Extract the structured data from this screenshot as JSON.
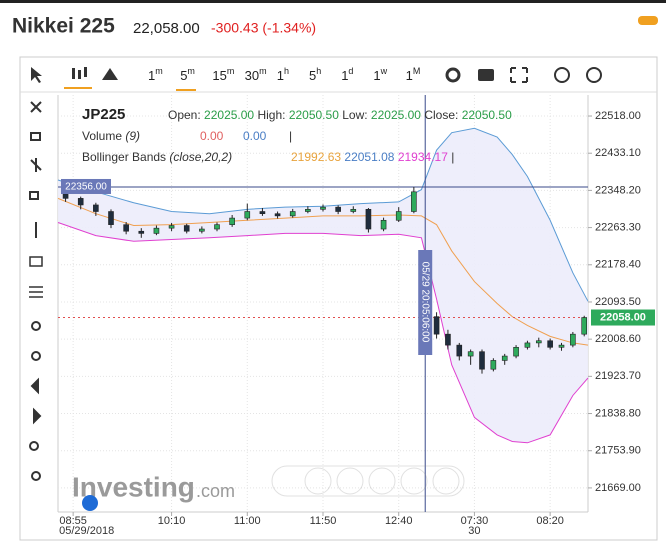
{
  "header": {
    "title": "Nikkei 225",
    "price": "22,058.00",
    "change": "-300.43 (-1.34%)"
  },
  "toolbar": {
    "intervals": [
      [
        "1",
        "m"
      ],
      [
        "5",
        "m"
      ],
      [
        "15",
        "m"
      ],
      [
        "30",
        "m"
      ],
      [
        "1",
        "h"
      ],
      [
        "5",
        "h"
      ],
      [
        "1",
        "d"
      ],
      [
        "1",
        "w"
      ],
      [
        "1",
        "M"
      ]
    ]
  },
  "legend": {
    "symbol": "JP225",
    "open_label": "Open:",
    "open": "22025.00",
    "high_label": "High:",
    "high": "22050.50",
    "low_label": "Low:",
    "low": "22025.00",
    "close_label": "Close:",
    "close": "22050.50",
    "volume_label": "Volume",
    "volume_param": "(9)",
    "volume_a": "0.00",
    "volume_b": "0.00",
    "sep": "|",
    "bb_label": "Bollinger Bands",
    "bb_param": "(close,20,2)",
    "bb_a": "21992.63",
    "bb_b": "22051.08",
    "bb_c": "21934.17"
  },
  "logo": {
    "text": "Investing",
    "suffix": ".com"
  },
  "chart_data": {
    "type": "candlestick",
    "xlim": [
      0,
      70
    ],
    "ylim": [
      21614,
      22566
    ],
    "grid": true,
    "up_color": "#2eaa5c",
    "down_color": "#1f2d3d",
    "yticks": [
      {
        "value": 22518,
        "label": "22518.00"
      },
      {
        "value": 22433.1,
        "label": "22433.10"
      },
      {
        "value": 22348.2,
        "label": "22348.20"
      },
      {
        "value": 22263.3,
        "label": "22263.30"
      },
      {
        "value": 22178.4,
        "label": "22178.40"
      },
      {
        "value": 22093.5,
        "label": "22093.50"
      },
      {
        "value": 22008.6,
        "label": "22008.60"
      },
      {
        "value": 21923.7,
        "label": "21923.70"
      },
      {
        "value": 21838.8,
        "label": "21838.80"
      },
      {
        "value": 21753.9,
        "label": "21753.90"
      },
      {
        "value": 21669,
        "label": "21669.00"
      }
    ],
    "xticks": [
      {
        "value": 2,
        "label": "08:55"
      },
      {
        "value": 15,
        "label": "10:10"
      },
      {
        "value": 25,
        "label": "11:00"
      },
      {
        "value": 35,
        "label": "11:50"
      },
      {
        "value": 45,
        "label": "12:40"
      },
      {
        "value": 55,
        "label": "07:30"
      },
      {
        "value": 65,
        "label": "08:20"
      }
    ],
    "date_labels": [
      {
        "value": 2,
        "label": "05/29/2018"
      },
      {
        "value": 55,
        "label": "30"
      }
    ],
    "x": [
      1,
      3,
      5,
      7,
      9,
      11,
      13,
      15,
      17,
      19,
      21,
      23,
      25,
      27,
      29,
      31,
      33,
      35,
      37,
      39,
      41,
      43,
      45,
      47,
      50,
      51.5,
      53,
      54.5,
      56,
      57.5,
      59,
      60.5,
      62,
      63.5,
      65,
      66.5,
      68,
      69.5
    ],
    "ohlc": [
      [
        22340,
        22345,
        22322,
        22330
      ],
      [
        22330,
        22334,
        22305,
        22315
      ],
      [
        22315,
        22320,
        22290,
        22300
      ],
      [
        22300,
        22305,
        22262,
        22270
      ],
      [
        22270,
        22276,
        22248,
        22255
      ],
      [
        22255,
        22262,
        22240,
        22250
      ],
      [
        22250,
        22268,
        22246,
        22262
      ],
      [
        22262,
        22274,
        22255,
        22268
      ],
      [
        22268,
        22272,
        22250,
        22255
      ],
      [
        22255,
        22266,
        22250,
        22260
      ],
      [
        22260,
        22275,
        22255,
        22270
      ],
      [
        22270,
        22292,
        22265,
        22285
      ],
      [
        22285,
        22318,
        22280,
        22300
      ],
      [
        22300,
        22308,
        22290,
        22295
      ],
      [
        22295,
        22300,
        22284,
        22290
      ],
      [
        22290,
        22306,
        22286,
        22300
      ],
      [
        22300,
        22312,
        22296,
        22305
      ],
      [
        22305,
        22316,
        22300,
        22310
      ],
      [
        22310,
        22314,
        22294,
        22300
      ],
      [
        22300,
        22312,
        22296,
        22305
      ],
      [
        22305,
        22308,
        22252,
        22260
      ],
      [
        22260,
        22286,
        22255,
        22280
      ],
      [
        22280,
        22310,
        22276,
        22300
      ],
      [
        22300,
        22356,
        22296,
        22345
      ],
      [
        22060,
        22070,
        22010,
        22020
      ],
      [
        22020,
        22030,
        21985,
        21995
      ],
      [
        21995,
        22000,
        21960,
        21970
      ],
      [
        21970,
        21985,
        21950,
        21980
      ],
      [
        21980,
        21985,
        21930,
        21940
      ],
      [
        21940,
        21965,
        21935,
        21960
      ],
      [
        21960,
        21975,
        21950,
        21970
      ],
      [
        21970,
        21995,
        21965,
        21990
      ],
      [
        21990,
        22005,
        21985,
        22000
      ],
      [
        22000,
        22012,
        21990,
        22005
      ],
      [
        22005,
        22010,
        21985,
        21990
      ],
      [
        21990,
        22000,
        21982,
        21995
      ],
      [
        21995,
        22025,
        21990,
        22020
      ],
      [
        22020,
        22062,
        22015,
        22058
      ]
    ],
    "bands": {
      "x": [
        0,
        5,
        10,
        15,
        20,
        25,
        30,
        35,
        40,
        45,
        48,
        50,
        52,
        55,
        58,
        60,
        62,
        65,
        68,
        70
      ],
      "upper": [
        22372,
        22345,
        22320,
        22300,
        22295,
        22305,
        22310,
        22312,
        22318,
        22322,
        22350,
        22440,
        22480,
        22490,
        22470,
        22430,
        22380,
        22280,
        22160,
        22095
      ],
      "middle": [
        22330,
        22295,
        22268,
        22270,
        22275,
        22280,
        22285,
        22290,
        22290,
        22292,
        22290,
        22270,
        22210,
        22140,
        22090,
        22060,
        22040,
        22015,
        22000,
        21995
      ],
      "lower": [
        22275,
        22245,
        22232,
        22236,
        22240,
        22245,
        22250,
        22250,
        22245,
        22248,
        22240,
        22100,
        21950,
        21830,
        21790,
        21775,
        21772,
        21790,
        21880,
        21920
      ],
      "upper_color": "#5b9bd5",
      "middle_color": "#f0a050",
      "lower_color": "#e040d0",
      "fill": "#ececfb"
    },
    "crosshair": {
      "y": {
        "value": 22356,
        "label": "22356.00"
      },
      "x": {
        "value": 48.5,
        "label": "05/29 20:05:06:00"
      }
    },
    "last_price": {
      "value": 22058,
      "label": "22058.00"
    }
  }
}
